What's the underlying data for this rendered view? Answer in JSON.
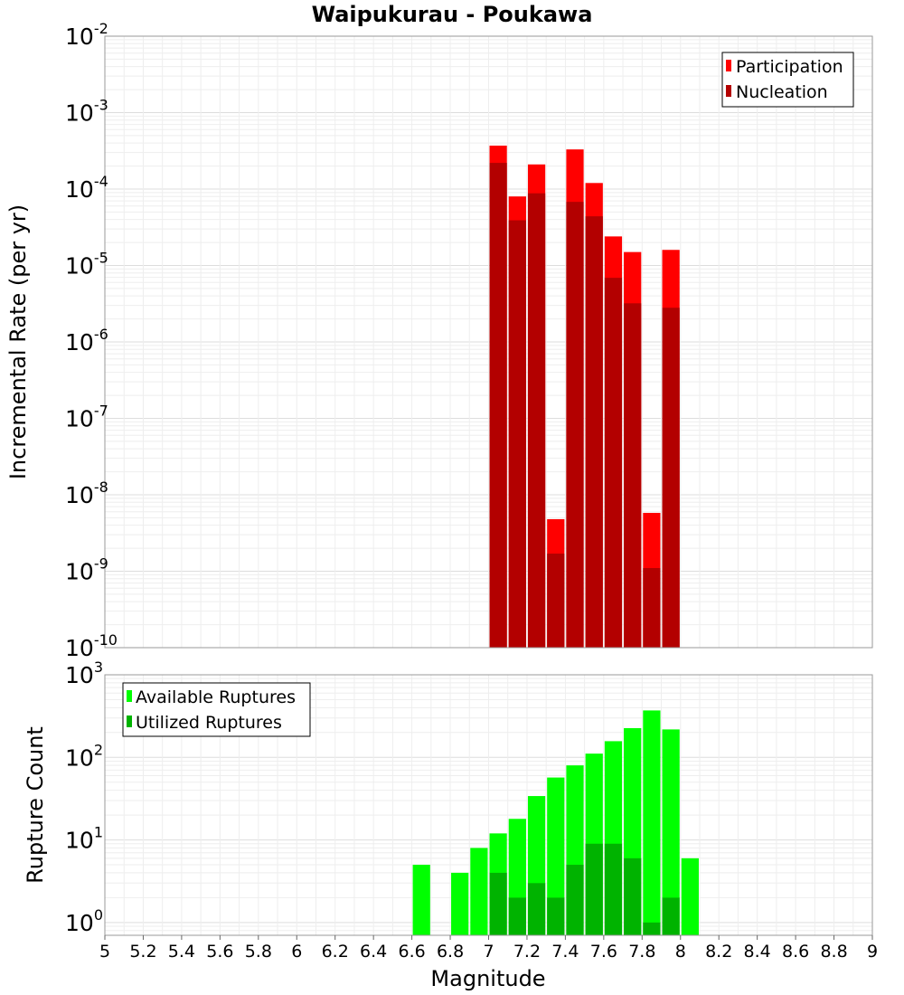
{
  "chart_data": [
    {
      "type": "bar",
      "title": "Waipukurau - Poukawa",
      "ylabel": "Incremental Rate (per yr)",
      "xlabel": "",
      "yscale": "log",
      "ylim": [
        1e-10,
        0.01
      ],
      "xlim": [
        5,
        9
      ],
      "grid": true,
      "legend_position": "top-right",
      "legend": [
        "Participation",
        "Nucleation"
      ],
      "colors": {
        "Participation": "#ff0000",
        "Nucleation": "#b30000"
      },
      "x": [
        7.05,
        7.15,
        7.25,
        7.35,
        7.45,
        7.55,
        7.65,
        7.75,
        7.85,
        7.95
      ],
      "series": [
        {
          "name": "Participation",
          "values": [
            0.00037,
            8e-05,
            0.00021,
            4.8e-09,
            0.00033,
            0.00012,
            2.4e-05,
            1.5e-05,
            5.8e-09,
            1.6e-05
          ]
        },
        {
          "name": "Nucleation",
          "values": [
            0.00022,
            3.9e-05,
            8.8e-05,
            1.7e-09,
            6.8e-05,
            4.4e-05,
            6.9e-06,
            3.2e-06,
            1.1e-09,
            2.8e-06
          ]
        }
      ],
      "yticks": [
        {
          "base": "10",
          "exp": "-2"
        },
        {
          "base": "10",
          "exp": "-3"
        },
        {
          "base": "10",
          "exp": "-4"
        },
        {
          "base": "10",
          "exp": "-5"
        },
        {
          "base": "10",
          "exp": "-6"
        },
        {
          "base": "10",
          "exp": "-7"
        },
        {
          "base": "10",
          "exp": "-8"
        },
        {
          "base": "10",
          "exp": "-9"
        },
        {
          "base": "10",
          "exp": "-10"
        }
      ]
    },
    {
      "type": "bar",
      "title": "",
      "ylabel": "Rupture Count",
      "xlabel": "Magnitude",
      "yscale": "log",
      "ylim": [
        0.7,
        1000
      ],
      "xlim": [
        5,
        9
      ],
      "grid": true,
      "legend_position": "top-left",
      "legend": [
        "Available Ruptures",
        "Utilized Ruptures"
      ],
      "colors": {
        "Available Ruptures": "#00ff00",
        "Utilized Ruptures": "#00b300"
      },
      "x": [
        6.65,
        6.85,
        6.95,
        7.05,
        7.15,
        7.25,
        7.35,
        7.45,
        7.55,
        7.65,
        7.75,
        7.85,
        7.95,
        8.05
      ],
      "series": [
        {
          "name": "Available Ruptures",
          "values": [
            5,
            4,
            8,
            12,
            18,
            34,
            57,
            80,
            111,
            157,
            226,
            370,
            218,
            6
          ]
        },
        {
          "name": "Utilized Ruptures",
          "values": [
            null,
            null,
            null,
            4,
            2,
            3,
            2,
            5,
            9,
            9,
            6,
            1,
            2,
            null
          ]
        }
      ],
      "yticks": [
        {
          "base": "10",
          "exp": "3"
        },
        {
          "base": "10",
          "exp": "2"
        },
        {
          "base": "10",
          "exp": "1"
        },
        {
          "base": "10",
          "exp": "0"
        }
      ],
      "xticks": [
        "5",
        "5.2",
        "5.4",
        "5.6",
        "5.8",
        "6",
        "6.2",
        "6.4",
        "6.6",
        "6.8",
        "7",
        "7.2",
        "7.4",
        "7.6",
        "7.8",
        "8",
        "8.2",
        "8.4",
        "8.6",
        "8.8",
        "9"
      ]
    }
  ]
}
